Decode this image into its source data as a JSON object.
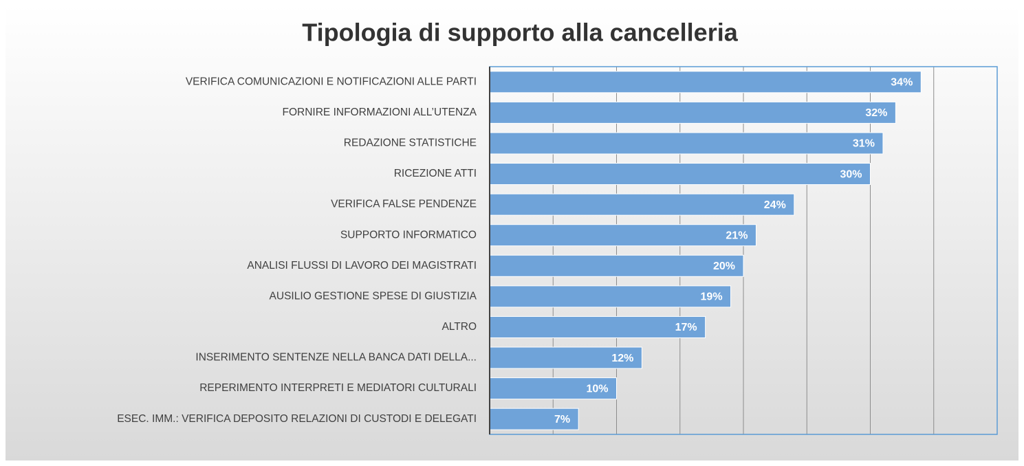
{
  "chart_data": {
    "type": "bar",
    "orientation": "horizontal",
    "title": "Tipologia di supporto alla cancelleria",
    "categories": [
      "VERIFICA COMUNICAZIONI E NOTIFICAZIONI ALLE PARTI",
      "FORNIRE INFORMAZIONI ALL’UTENZA",
      "REDAZIONE STATISTICHE",
      "RICEZIONE ATTI",
      "VERIFICA FALSE PENDENZE",
      "SUPPORTO INFORMATICO",
      "ANALISI FLUSSI DI LAVORO DEI MAGISTRATI",
      "AUSILIO GESTIONE SPESE DI GIUSTIZIA",
      "ALTRO",
      "INSERIMENTO SENTENZE NELLA BANCA DATI DELLA...",
      "REPERIMENTO INTERPRETI E MEDIATORI CULTURALI",
      "ESEC. IMM.: VERIFICA DEPOSITO RELAZIONI DI CUSTODI E DELEGATI"
    ],
    "values": [
      34,
      32,
      31,
      30,
      24,
      21,
      20,
      19,
      17,
      12,
      10,
      7
    ],
    "value_labels": [
      "34%",
      "32%",
      "31%",
      "30%",
      "24%",
      "21%",
      "20%",
      "19%",
      "17%",
      "12%",
      "10%",
      "7%"
    ],
    "color": "#6fa3d9",
    "xlim": [
      0,
      40
    ],
    "xticks": [
      0,
      5,
      10,
      15,
      20,
      25,
      30,
      35,
      40
    ],
    "grid": true
  }
}
